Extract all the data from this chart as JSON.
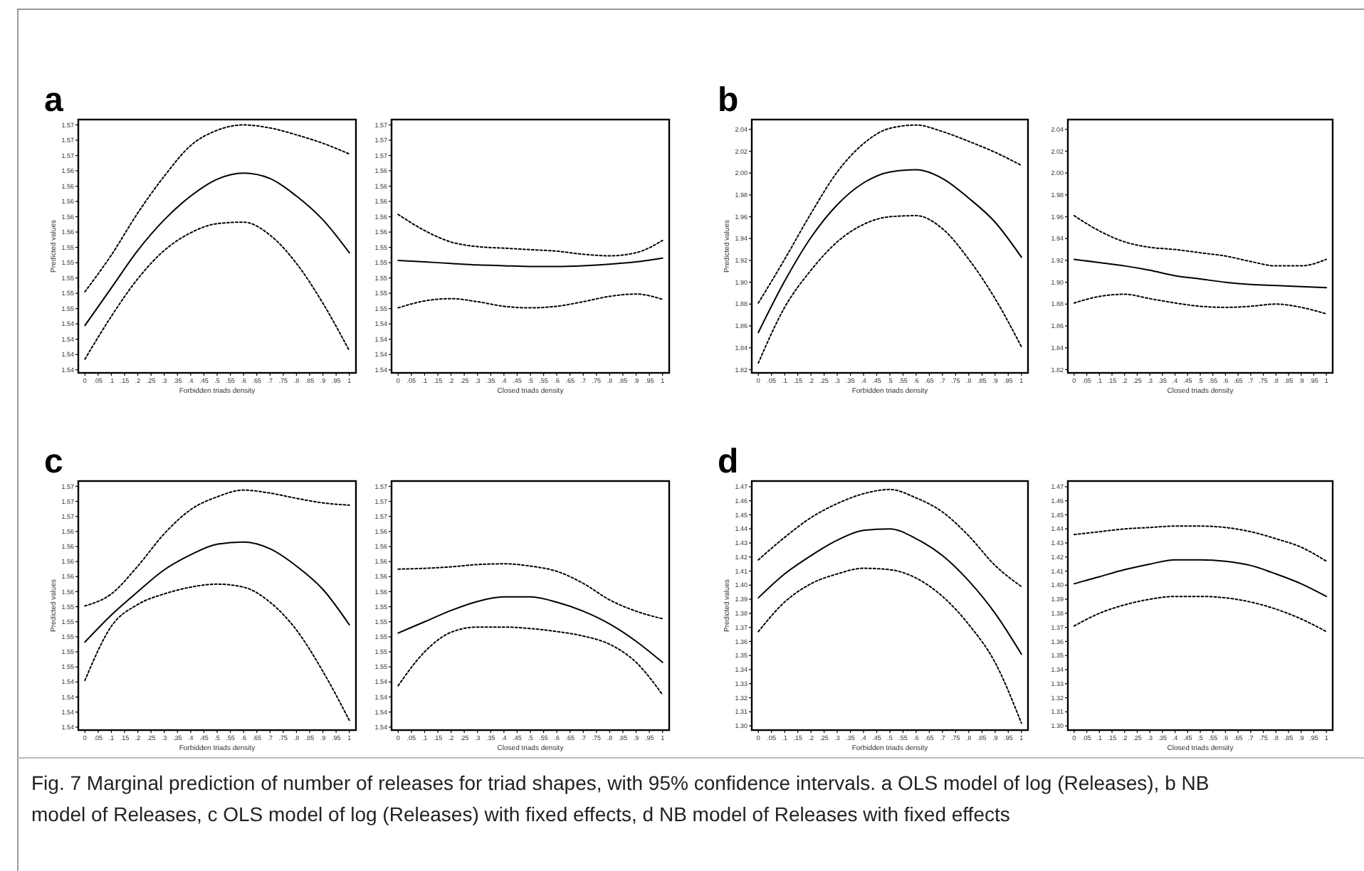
{
  "chart_data": [
    {
      "type": "line",
      "title": "a",
      "xlabel": "Forbidden triads density",
      "ylabel": "Predicted values",
      "x": [
        0,
        0.1,
        0.2,
        0.3,
        0.4,
        0.5,
        0.6,
        0.7,
        0.8,
        0.9,
        1
      ],
      "xlim": [
        -0.025,
        1.025
      ],
      "xticks": [
        {
          "value": 0,
          "label": "0"
        },
        {
          "value": 0.05,
          "label": ".05"
        },
        {
          "value": 0.1,
          "label": ".1"
        },
        {
          "value": 0.15,
          "label": ".15"
        },
        {
          "value": 0.2,
          "label": ".2"
        },
        {
          "value": 0.25,
          "label": ".25"
        },
        {
          "value": 0.3,
          "label": ".3"
        },
        {
          "value": 0.35,
          "label": ".35"
        },
        {
          "value": 0.4,
          "label": ".4"
        },
        {
          "value": 0.45,
          "label": ".45"
        },
        {
          "value": 0.5,
          "label": ".5"
        },
        {
          "value": 0.55,
          "label": ".55"
        },
        {
          "value": 0.6,
          "label": ".6"
        },
        {
          "value": 0.65,
          "label": ".65"
        },
        {
          "value": 0.7,
          "label": ".7"
        },
        {
          "value": 0.75,
          "label": ".75"
        },
        {
          "value": 0.8,
          "label": ".8"
        },
        {
          "value": 0.85,
          "label": ".85"
        },
        {
          "value": 0.9,
          "label": ".9"
        },
        {
          "value": 0.95,
          "label": ".95"
        },
        {
          "value": 1,
          "label": "1"
        }
      ],
      "ylim": [
        1.5376,
        1.5707
      ],
      "yticks": [
        {
          "value": 1.538,
          "label": "1.54"
        },
        {
          "value": 1.54,
          "label": "1.54"
        },
        {
          "value": 1.542,
          "label": "1.54"
        },
        {
          "value": 1.544,
          "label": "1.54"
        },
        {
          "value": 1.546,
          "label": "1.55"
        },
        {
          "value": 1.548,
          "label": "1.55"
        },
        {
          "value": 1.55,
          "label": "1.55"
        },
        {
          "value": 1.552,
          "label": "1.55"
        },
        {
          "value": 1.554,
          "label": "1.55"
        },
        {
          "value": 1.556,
          "label": "1.56"
        },
        {
          "value": 1.558,
          "label": "1.56"
        },
        {
          "value": 1.56,
          "label": "1.56"
        },
        {
          "value": 1.562,
          "label": "1.56"
        },
        {
          "value": 1.564,
          "label": "1.56"
        },
        {
          "value": 1.566,
          "label": "1.57"
        },
        {
          "value": 1.568,
          "label": "1.57"
        },
        {
          "value": 1.57,
          "label": "1.57"
        }
      ],
      "series": [
        {
          "color": "#000000",
          "line_style": "solid",
          "values": [
            1.5438,
            1.5487,
            1.5536,
            1.5576,
            1.5607,
            1.5629,
            1.5637,
            1.563,
            1.5607,
            1.5576,
            1.5533
          ]
        },
        {
          "color": "#000000",
          "line_style": "dotted",
          "values": [
            1.5482,
            1.553,
            1.5585,
            1.5633,
            1.5673,
            1.5693,
            1.57,
            1.5696,
            1.5687,
            1.5676,
            1.5662
          ]
        },
        {
          "color": "#000000",
          "line_style": "dotted",
          "values": [
            1.5394,
            1.545,
            1.5499,
            1.5536,
            1.5559,
            1.5571,
            1.5573,
            1.5556,
            1.5519,
            1.5467,
            1.5405
          ]
        }
      ],
      "annotations": [
        "Fig. 7 Marginal prediction of number of releases for triad shapes, with 95% confidence intervals. a OLS model of log (Releases), b NB model of Releases, c OLS model of log (Releases) with fixed effects, d NB model of Releases with fixed effects"
      ]
    },
    {
      "type": "line",
      "xlabel": "Closed triads density",
      "x": [
        0,
        0.1,
        0.2,
        0.3,
        0.4,
        0.5,
        0.6,
        0.7,
        0.8,
        0.9,
        1
      ],
      "xlim": [
        -0.025,
        1.025
      ],
      "xticks": [
        {
          "value": 0,
          "label": "0"
        },
        {
          "value": 0.05,
          "label": ".05"
        },
        {
          "value": 0.1,
          "label": ".1"
        },
        {
          "value": 0.15,
          "label": ".15"
        },
        {
          "value": 0.2,
          "label": ".2"
        },
        {
          "value": 0.25,
          "label": ".25"
        },
        {
          "value": 0.3,
          "label": ".3"
        },
        {
          "value": 0.35,
          "label": ".35"
        },
        {
          "value": 0.4,
          "label": ".4"
        },
        {
          "value": 0.45,
          "label": ".45"
        },
        {
          "value": 0.5,
          "label": ".5"
        },
        {
          "value": 0.55,
          "label": ".55"
        },
        {
          "value": 0.6,
          "label": ".6"
        },
        {
          "value": 0.65,
          "label": ".65"
        },
        {
          "value": 0.7,
          "label": ".7"
        },
        {
          "value": 0.75,
          "label": ".75"
        },
        {
          "value": 0.8,
          "label": ".8"
        },
        {
          "value": 0.85,
          "label": ".85"
        },
        {
          "value": 0.9,
          "label": ".9"
        },
        {
          "value": 0.95,
          "label": ".95"
        },
        {
          "value": 1,
          "label": "1"
        }
      ],
      "ylim": [
        1.5376,
        1.5707
      ],
      "yticks": [
        {
          "value": 1.538,
          "label": "1.54"
        },
        {
          "value": 1.54,
          "label": "1.54"
        },
        {
          "value": 1.542,
          "label": "1.54"
        },
        {
          "value": 1.544,
          "label": "1.54"
        },
        {
          "value": 1.546,
          "label": "1.55"
        },
        {
          "value": 1.548,
          "label": "1.55"
        },
        {
          "value": 1.55,
          "label": "1.55"
        },
        {
          "value": 1.552,
          "label": "1.55"
        },
        {
          "value": 1.554,
          "label": "1.55"
        },
        {
          "value": 1.556,
          "label": "1.56"
        },
        {
          "value": 1.558,
          "label": "1.56"
        },
        {
          "value": 1.56,
          "label": "1.56"
        },
        {
          "value": 1.562,
          "label": "1.56"
        },
        {
          "value": 1.564,
          "label": "1.56"
        },
        {
          "value": 1.566,
          "label": "1.57"
        },
        {
          "value": 1.568,
          "label": "1.57"
        },
        {
          "value": 1.57,
          "label": "1.57"
        }
      ],
      "series": [
        {
          "color": "#000000",
          "line_style": "solid",
          "values": [
            1.5523,
            1.5521,
            1.5519,
            1.5517,
            1.5516,
            1.5515,
            1.5515,
            1.5516,
            1.5518,
            1.5521,
            1.5526
          ]
        },
        {
          "color": "#000000",
          "line_style": "dotted",
          "values": [
            1.5583,
            1.5562,
            1.5547,
            1.5541,
            1.5539,
            1.5537,
            1.5535,
            1.5531,
            1.5529,
            1.5533,
            1.5549
          ]
        },
        {
          "color": "#000000",
          "line_style": "dotted",
          "values": [
            1.5461,
            1.547,
            1.5473,
            1.5469,
            1.5463,
            1.5461,
            1.5463,
            1.5469,
            1.5476,
            1.5479,
            1.5472
          ]
        }
      ]
    },
    {
      "type": "line",
      "title": "b",
      "xlabel": "Forbidden triads density",
      "ylabel": "Predicted values",
      "x": [
        0,
        0.1,
        0.2,
        0.3,
        0.4,
        0.5,
        0.6,
        0.7,
        0.8,
        0.9,
        1
      ],
      "xlim": [
        -0.025,
        1.025
      ],
      "xticks": [
        {
          "value": 0,
          "label": "0"
        },
        {
          "value": 0.05,
          "label": ".05"
        },
        {
          "value": 0.1,
          "label": ".1"
        },
        {
          "value": 0.15,
          "label": ".15"
        },
        {
          "value": 0.2,
          "label": ".2"
        },
        {
          "value": 0.25,
          "label": ".25"
        },
        {
          "value": 0.3,
          "label": ".3"
        },
        {
          "value": 0.35,
          "label": ".35"
        },
        {
          "value": 0.4,
          "label": ".4"
        },
        {
          "value": 0.45,
          "label": ".45"
        },
        {
          "value": 0.5,
          "label": ".5"
        },
        {
          "value": 0.55,
          "label": ".55"
        },
        {
          "value": 0.6,
          "label": ".6"
        },
        {
          "value": 0.65,
          "label": ".65"
        },
        {
          "value": 0.7,
          "label": ".7"
        },
        {
          "value": 0.75,
          "label": ".75"
        },
        {
          "value": 0.8,
          "label": ".8"
        },
        {
          "value": 0.85,
          "label": ".85"
        },
        {
          "value": 0.9,
          "label": ".9"
        },
        {
          "value": 0.95,
          "label": ".95"
        },
        {
          "value": 1,
          "label": "1"
        }
      ],
      "ylim": [
        1.817,
        2.049
      ],
      "yticks": [
        {
          "value": 1.82,
          "label": "1.82"
        },
        {
          "value": 1.84,
          "label": "1.84"
        },
        {
          "value": 1.86,
          "label": "1.86"
        },
        {
          "value": 1.88,
          "label": "1.88"
        },
        {
          "value": 1.9,
          "label": "1.90"
        },
        {
          "value": 1.92,
          "label": "1.92"
        },
        {
          "value": 1.94,
          "label": "1.94"
        },
        {
          "value": 1.96,
          "label": "1.96"
        },
        {
          "value": 1.98,
          "label": "1.98"
        },
        {
          "value": 2,
          "label": "2.00"
        },
        {
          "value": 2.02,
          "label": "2.02"
        },
        {
          "value": 2.04,
          "label": "2.04"
        }
      ],
      "series": [
        {
          "color": "#000000",
          "line_style": "solid",
          "values": [
            1.854,
            1.901,
            1.941,
            1.971,
            1.991,
            2.001,
            2.003,
            1.995,
            1.977,
            1.955,
            1.923
          ]
        },
        {
          "color": "#000000",
          "line_style": "dotted",
          "values": [
            1.881,
            1.921,
            1.963,
            2.001,
            2.027,
            2.041,
            2.044,
            2.038,
            2.029,
            2.019,
            2.007
          ]
        },
        {
          "color": "#000000",
          "line_style": "dotted",
          "values": [
            1.826,
            1.877,
            1.911,
            1.937,
            1.953,
            1.96,
            1.961,
            1.949,
            1.921,
            1.885,
            1.841
          ]
        }
      ]
    },
    {
      "type": "line",
      "xlabel": "Closed triads density",
      "x": [
        0,
        0.1,
        0.2,
        0.3,
        0.4,
        0.5,
        0.6,
        0.7,
        0.8,
        0.9,
        1
      ],
      "xlim": [
        -0.025,
        1.025
      ],
      "xticks": [
        {
          "value": 0,
          "label": "0"
        },
        {
          "value": 0.05,
          "label": ".05"
        },
        {
          "value": 0.1,
          "label": ".1"
        },
        {
          "value": 0.15,
          "label": ".15"
        },
        {
          "value": 0.2,
          "label": ".2"
        },
        {
          "value": 0.25,
          "label": ".25"
        },
        {
          "value": 0.3,
          "label": ".3"
        },
        {
          "value": 0.35,
          "label": ".35"
        },
        {
          "value": 0.4,
          "label": ".4"
        },
        {
          "value": 0.45,
          "label": ".45"
        },
        {
          "value": 0.5,
          "label": ".5"
        },
        {
          "value": 0.55,
          "label": ".55"
        },
        {
          "value": 0.6,
          "label": ".6"
        },
        {
          "value": 0.65,
          "label": ".65"
        },
        {
          "value": 0.7,
          "label": ".7"
        },
        {
          "value": 0.75,
          "label": ".75"
        },
        {
          "value": 0.8,
          "label": ".8"
        },
        {
          "value": 0.85,
          "label": ".85"
        },
        {
          "value": 0.9,
          "label": ".9"
        },
        {
          "value": 0.95,
          "label": ".95"
        },
        {
          "value": 1,
          "label": "1"
        }
      ],
      "ylim": [
        1.817,
        2.049
      ],
      "yticks": [
        {
          "value": 1.82,
          "label": "1.82"
        },
        {
          "value": 1.84,
          "label": "1.84"
        },
        {
          "value": 1.86,
          "label": "1.86"
        },
        {
          "value": 1.88,
          "label": "1.88"
        },
        {
          "value": 1.9,
          "label": "1.90"
        },
        {
          "value": 1.92,
          "label": "1.92"
        },
        {
          "value": 1.94,
          "label": "1.94"
        },
        {
          "value": 1.96,
          "label": "1.96"
        },
        {
          "value": 1.98,
          "label": "1.98"
        },
        {
          "value": 2,
          "label": "2.00"
        },
        {
          "value": 2.02,
          "label": "2.02"
        },
        {
          "value": 2.04,
          "label": "2.04"
        }
      ],
      "series": [
        {
          "color": "#000000",
          "line_style": "solid",
          "values": [
            1.921,
            1.918,
            1.915,
            1.911,
            1.906,
            1.903,
            1.9,
            1.898,
            1.897,
            1.896,
            1.895
          ]
        },
        {
          "color": "#000000",
          "line_style": "dotted",
          "values": [
            1.961,
            1.947,
            1.937,
            1.932,
            1.93,
            1.927,
            1.924,
            1.919,
            1.915,
            1.915,
            1.921
          ]
        },
        {
          "color": "#000000",
          "line_style": "dotted",
          "values": [
            1.881,
            1.887,
            1.889,
            1.885,
            1.881,
            1.878,
            1.877,
            1.878,
            1.88,
            1.877,
            1.871
          ]
        }
      ]
    },
    {
      "type": "line",
      "title": "c",
      "xlabel": "Forbidden triads density",
      "ylabel": "Predicted values",
      "x": [
        0,
        0.1,
        0.2,
        0.3,
        0.4,
        0.5,
        0.6,
        0.7,
        0.8,
        0.9,
        1
      ],
      "xlim": [
        -0.025,
        1.025
      ],
      "xticks": [
        {
          "value": 0,
          "label": "0"
        },
        {
          "value": 0.05,
          "label": ".05"
        },
        {
          "value": 0.1,
          "label": ".1"
        },
        {
          "value": 0.15,
          "label": ".15"
        },
        {
          "value": 0.2,
          "label": ".2"
        },
        {
          "value": 0.25,
          "label": ".25"
        },
        {
          "value": 0.3,
          "label": ".3"
        },
        {
          "value": 0.35,
          "label": ".35"
        },
        {
          "value": 0.4,
          "label": ".4"
        },
        {
          "value": 0.45,
          "label": ".45"
        },
        {
          "value": 0.5,
          "label": ".5"
        },
        {
          "value": 0.55,
          "label": ".55"
        },
        {
          "value": 0.6,
          "label": ".6"
        },
        {
          "value": 0.65,
          "label": ".65"
        },
        {
          "value": 0.7,
          "label": ".7"
        },
        {
          "value": 0.75,
          "label": ".75"
        },
        {
          "value": 0.8,
          "label": ".8"
        },
        {
          "value": 0.85,
          "label": ".85"
        },
        {
          "value": 0.9,
          "label": ".9"
        },
        {
          "value": 0.95,
          "label": ".95"
        },
        {
          "value": 1,
          "label": "1"
        }
      ],
      "ylim": [
        1.5376,
        1.5707
      ],
      "yticks": [
        {
          "value": 1.538,
          "label": "1.54"
        },
        {
          "value": 1.54,
          "label": "1.54"
        },
        {
          "value": 1.542,
          "label": "1.54"
        },
        {
          "value": 1.544,
          "label": "1.54"
        },
        {
          "value": 1.546,
          "label": "1.55"
        },
        {
          "value": 1.548,
          "label": "1.55"
        },
        {
          "value": 1.55,
          "label": "1.55"
        },
        {
          "value": 1.552,
          "label": "1.55"
        },
        {
          "value": 1.554,
          "label": "1.55"
        },
        {
          "value": 1.556,
          "label": "1.56"
        },
        {
          "value": 1.558,
          "label": "1.56"
        },
        {
          "value": 1.56,
          "label": "1.56"
        },
        {
          "value": 1.562,
          "label": "1.56"
        },
        {
          "value": 1.564,
          "label": "1.56"
        },
        {
          "value": 1.566,
          "label": "1.57"
        },
        {
          "value": 1.568,
          "label": "1.57"
        },
        {
          "value": 1.57,
          "label": "1.57"
        }
      ],
      "series": [
        {
          "color": "#000000",
          "line_style": "solid",
          "values": [
            1.5493,
            1.5529,
            1.556,
            1.5589,
            1.5609,
            1.5623,
            1.5626,
            1.5617,
            1.5594,
            1.5563,
            1.5516
          ]
        },
        {
          "color": "#000000",
          "line_style": "dotted",
          "values": [
            1.5541,
            1.5557,
            1.5594,
            1.5637,
            1.5669,
            1.5686,
            1.5695,
            1.5691,
            1.5684,
            1.5678,
            1.5675
          ]
        },
        {
          "color": "#000000",
          "line_style": "dotted",
          "values": [
            1.5442,
            1.5514,
            1.5543,
            1.5557,
            1.5566,
            1.557,
            1.5566,
            1.5546,
            1.5509,
            1.5454,
            1.5389
          ]
        }
      ]
    },
    {
      "type": "line",
      "xlabel": "Closed triads density",
      "x": [
        0,
        0.1,
        0.2,
        0.3,
        0.4,
        0.5,
        0.6,
        0.7,
        0.8,
        0.9,
        1
      ],
      "xlim": [
        -0.025,
        1.025
      ],
      "xticks": [
        {
          "value": 0,
          "label": "0"
        },
        {
          "value": 0.05,
          "label": ".05"
        },
        {
          "value": 0.1,
          "label": ".1"
        },
        {
          "value": 0.15,
          "label": ".15"
        },
        {
          "value": 0.2,
          "label": ".2"
        },
        {
          "value": 0.25,
          "label": ".25"
        },
        {
          "value": 0.3,
          "label": ".3"
        },
        {
          "value": 0.35,
          "label": ".35"
        },
        {
          "value": 0.4,
          "label": ".4"
        },
        {
          "value": 0.45,
          "label": ".45"
        },
        {
          "value": 0.5,
          "label": ".5"
        },
        {
          "value": 0.55,
          "label": ".55"
        },
        {
          "value": 0.6,
          "label": ".6"
        },
        {
          "value": 0.65,
          "label": ".65"
        },
        {
          "value": 0.7,
          "label": ".7"
        },
        {
          "value": 0.75,
          "label": ".75"
        },
        {
          "value": 0.8,
          "label": ".8"
        },
        {
          "value": 0.85,
          "label": ".85"
        },
        {
          "value": 0.9,
          "label": ".9"
        },
        {
          "value": 0.95,
          "label": ".95"
        },
        {
          "value": 1,
          "label": "1"
        }
      ],
      "ylim": [
        1.5376,
        1.5707
      ],
      "yticks": [
        {
          "value": 1.538,
          "label": "1.54"
        },
        {
          "value": 1.54,
          "label": "1.54"
        },
        {
          "value": 1.542,
          "label": "1.54"
        },
        {
          "value": 1.544,
          "label": "1.54"
        },
        {
          "value": 1.546,
          "label": "1.55"
        },
        {
          "value": 1.548,
          "label": "1.55"
        },
        {
          "value": 1.55,
          "label": "1.55"
        },
        {
          "value": 1.552,
          "label": "1.55"
        },
        {
          "value": 1.554,
          "label": "1.55"
        },
        {
          "value": 1.556,
          "label": "1.56"
        },
        {
          "value": 1.558,
          "label": "1.56"
        },
        {
          "value": 1.56,
          "label": "1.56"
        },
        {
          "value": 1.562,
          "label": "1.56"
        },
        {
          "value": 1.564,
          "label": "1.56"
        },
        {
          "value": 1.566,
          "label": "1.57"
        },
        {
          "value": 1.568,
          "label": "1.57"
        },
        {
          "value": 1.57,
          "label": "1.57"
        }
      ],
      "series": [
        {
          "color": "#000000",
          "line_style": "solid",
          "values": [
            1.5505,
            1.552,
            1.5535,
            1.5547,
            1.5553,
            1.5553,
            1.5546,
            1.5534,
            1.5517,
            1.5494,
            1.5466
          ]
        },
        {
          "color": "#000000",
          "line_style": "dotted",
          "values": [
            1.559,
            1.5591,
            1.5593,
            1.5596,
            1.5597,
            1.5594,
            1.5587,
            1.5571,
            1.5549,
            1.5534,
            1.5524
          ]
        },
        {
          "color": "#000000",
          "line_style": "dotted",
          "values": [
            1.5435,
            1.548,
            1.5506,
            1.5513,
            1.5513,
            1.5511,
            1.5507,
            1.5501,
            1.549,
            1.5466,
            1.5423
          ]
        }
      ]
    },
    {
      "type": "line",
      "title": "d",
      "xlabel": "Forbidden triads density",
      "ylabel": "Predicted values",
      "x": [
        0,
        0.1,
        0.2,
        0.3,
        0.4,
        0.5,
        0.6,
        0.7,
        0.8,
        0.9,
        1
      ],
      "xlim": [
        -0.025,
        1.025
      ],
      "xticks": [
        {
          "value": 0,
          "label": "0"
        },
        {
          "value": 0.05,
          "label": ".05"
        },
        {
          "value": 0.1,
          "label": ".1"
        },
        {
          "value": 0.15,
          "label": ".15"
        },
        {
          "value": 0.2,
          "label": ".2"
        },
        {
          "value": 0.25,
          "label": ".25"
        },
        {
          "value": 0.3,
          "label": ".3"
        },
        {
          "value": 0.35,
          "label": ".35"
        },
        {
          "value": 0.4,
          "label": ".4"
        },
        {
          "value": 0.45,
          "label": ".45"
        },
        {
          "value": 0.5,
          "label": ".5"
        },
        {
          "value": 0.55,
          "label": ".55"
        },
        {
          "value": 0.6,
          "label": ".6"
        },
        {
          "value": 0.65,
          "label": ".65"
        },
        {
          "value": 0.7,
          "label": ".7"
        },
        {
          "value": 0.75,
          "label": ".75"
        },
        {
          "value": 0.8,
          "label": ".8"
        },
        {
          "value": 0.85,
          "label": ".85"
        },
        {
          "value": 0.9,
          "label": ".9"
        },
        {
          "value": 0.95,
          "label": ".95"
        },
        {
          "value": 1,
          "label": "1"
        }
      ],
      "ylim": [
        1.297,
        1.474
      ],
      "yticks": [
        {
          "value": 1.3,
          "label": "1.30"
        },
        {
          "value": 1.31,
          "label": "1.31"
        },
        {
          "value": 1.32,
          "label": "1.32"
        },
        {
          "value": 1.33,
          "label": "1.33"
        },
        {
          "value": 1.34,
          "label": "1.34"
        },
        {
          "value": 1.35,
          "label": "1.35"
        },
        {
          "value": 1.36,
          "label": "1.36"
        },
        {
          "value": 1.37,
          "label": "1.37"
        },
        {
          "value": 1.38,
          "label": "1.38"
        },
        {
          "value": 1.39,
          "label": "1.39"
        },
        {
          "value": 1.4,
          "label": "1.40"
        },
        {
          "value": 1.41,
          "label": "1.41"
        },
        {
          "value": 1.42,
          "label": "1.42"
        },
        {
          "value": 1.43,
          "label": "1.43"
        },
        {
          "value": 1.44,
          "label": "1.44"
        },
        {
          "value": 1.45,
          "label": "1.45"
        },
        {
          "value": 1.46,
          "label": "1.46"
        },
        {
          "value": 1.47,
          "label": "1.47"
        }
      ],
      "series": [
        {
          "color": "#000000",
          "line_style": "solid",
          "values": [
            1.391,
            1.408,
            1.421,
            1.432,
            1.439,
            1.44,
            1.433,
            1.421,
            1.403,
            1.38,
            1.351
          ]
        },
        {
          "color": "#000000",
          "line_style": "dotted",
          "values": [
            1.418,
            1.434,
            1.448,
            1.458,
            1.465,
            1.468,
            1.462,
            1.452,
            1.435,
            1.414,
            1.399
          ]
        },
        {
          "color": "#000000",
          "line_style": "dotted",
          "values": [
            1.367,
            1.388,
            1.401,
            1.408,
            1.412,
            1.411,
            1.405,
            1.392,
            1.372,
            1.345,
            1.302
          ]
        }
      ]
    },
    {
      "type": "line",
      "xlabel": "Closed triads density",
      "x": [
        0,
        0.1,
        0.2,
        0.3,
        0.4,
        0.5,
        0.6,
        0.7,
        0.8,
        0.9,
        1
      ],
      "xlim": [
        -0.025,
        1.025
      ],
      "xticks": [
        {
          "value": 0,
          "label": "0"
        },
        {
          "value": 0.05,
          "label": ".05"
        },
        {
          "value": 0.1,
          "label": ".1"
        },
        {
          "value": 0.15,
          "label": ".15"
        },
        {
          "value": 0.2,
          "label": ".2"
        },
        {
          "value": 0.25,
          "label": ".25"
        },
        {
          "value": 0.3,
          "label": ".3"
        },
        {
          "value": 0.35,
          "label": ".35"
        },
        {
          "value": 0.4,
          "label": ".4"
        },
        {
          "value": 0.45,
          "label": ".45"
        },
        {
          "value": 0.5,
          "label": ".5"
        },
        {
          "value": 0.55,
          "label": ".55"
        },
        {
          "value": 0.6,
          "label": ".6"
        },
        {
          "value": 0.65,
          "label": ".65"
        },
        {
          "value": 0.7,
          "label": ".7"
        },
        {
          "value": 0.75,
          "label": ".75"
        },
        {
          "value": 0.8,
          "label": ".8"
        },
        {
          "value": 0.85,
          "label": ".85"
        },
        {
          "value": 0.9,
          "label": ".9"
        },
        {
          "value": 0.95,
          "label": ".95"
        },
        {
          "value": 1,
          "label": "1"
        }
      ],
      "ylim": [
        1.297,
        1.474
      ],
      "yticks": [
        {
          "value": 1.3,
          "label": "1.30"
        },
        {
          "value": 1.31,
          "label": "1.31"
        },
        {
          "value": 1.32,
          "label": "1.32"
        },
        {
          "value": 1.33,
          "label": "1.33"
        },
        {
          "value": 1.34,
          "label": "1.34"
        },
        {
          "value": 1.35,
          "label": "1.35"
        },
        {
          "value": 1.36,
          "label": "1.36"
        },
        {
          "value": 1.37,
          "label": "1.37"
        },
        {
          "value": 1.38,
          "label": "1.38"
        },
        {
          "value": 1.39,
          "label": "1.39"
        },
        {
          "value": 1.4,
          "label": "1.40"
        },
        {
          "value": 1.41,
          "label": "1.41"
        },
        {
          "value": 1.42,
          "label": "1.42"
        },
        {
          "value": 1.43,
          "label": "1.43"
        },
        {
          "value": 1.44,
          "label": "1.44"
        },
        {
          "value": 1.45,
          "label": "1.45"
        },
        {
          "value": 1.46,
          "label": "1.46"
        },
        {
          "value": 1.47,
          "label": "1.47"
        }
      ],
      "series": [
        {
          "color": "#000000",
          "line_style": "solid",
          "values": [
            1.401,
            1.406,
            1.411,
            1.415,
            1.418,
            1.418,
            1.417,
            1.414,
            1.408,
            1.401,
            1.392
          ]
        },
        {
          "color": "#000000",
          "line_style": "dotted",
          "values": [
            1.436,
            1.438,
            1.44,
            1.441,
            1.442,
            1.442,
            1.441,
            1.438,
            1.433,
            1.427,
            1.417
          ]
        },
        {
          "color": "#000000",
          "line_style": "dotted",
          "values": [
            1.371,
            1.38,
            1.386,
            1.39,
            1.392,
            1.392,
            1.391,
            1.388,
            1.383,
            1.376,
            1.367
          ]
        }
      ]
    }
  ]
}
